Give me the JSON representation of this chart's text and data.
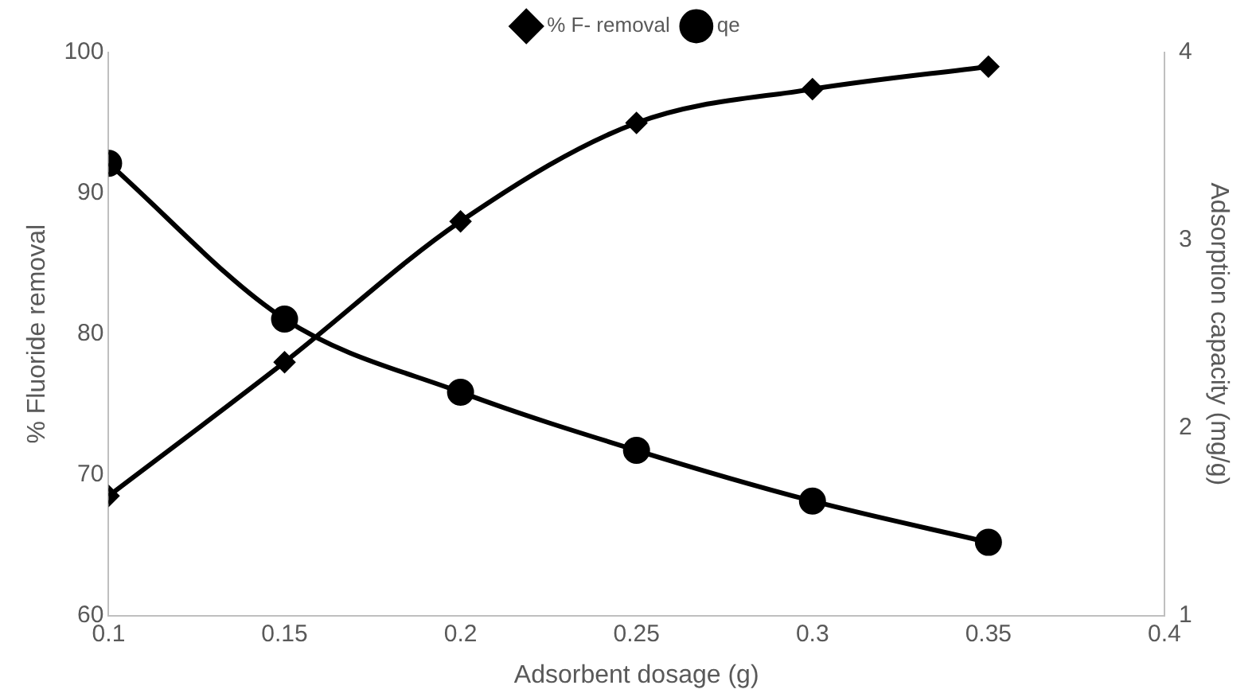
{
  "chart_data": {
    "type": "line",
    "xlabel": "Adsorbent dosage (g)",
    "ylabel": "% Fluoride removal",
    "y2label": "Adsorption capacity (mg/g)",
    "x": [
      0.1,
      0.15,
      0.2,
      0.25,
      0.3,
      0.35
    ],
    "series": [
      {
        "name": "% F- removal",
        "color": "#000000",
        "marker": "diamond",
        "values": [
          68.5,
          78,
          88,
          95,
          97.4,
          99
        ]
      },
      {
        "name": "qe",
        "color": "#000000",
        "marker": "circle",
        "axis": "y2",
        "values": [
          3.41,
          2.58,
          2.19,
          1.88,
          1.61,
          1.39
        ]
      }
    ],
    "xlim": [
      0.1,
      0.4
    ],
    "xticks": [
      0.1,
      0.15,
      0.2,
      0.25,
      0.3,
      0.35,
      0.4
    ],
    "ylim": [
      60,
      100
    ],
    "yticks": [
      60,
      70,
      80,
      90,
      100
    ],
    "y2lim": [
      1,
      4
    ],
    "y2ticks": [
      1,
      2,
      3,
      4
    ],
    "grid": false,
    "legend": "top",
    "line_style": "solid"
  }
}
